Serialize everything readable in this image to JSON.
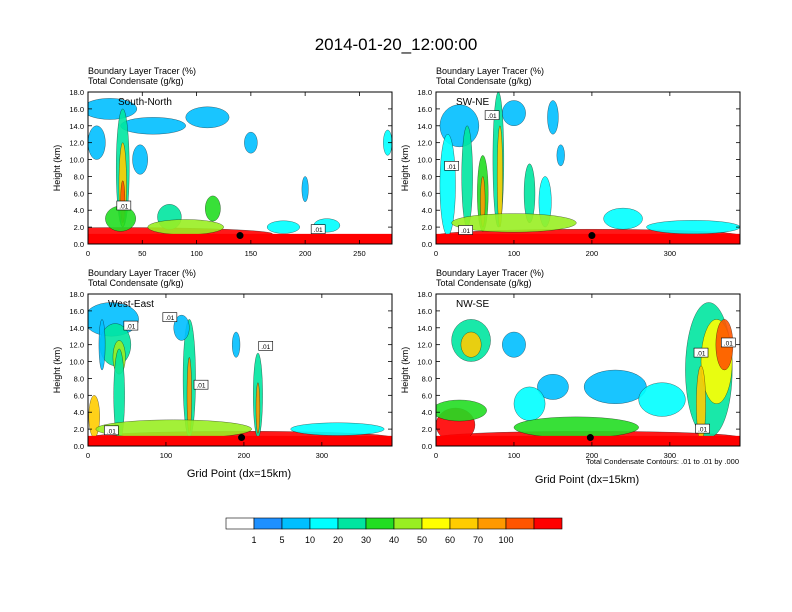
{
  "title": "2014-01-20_12:00:00",
  "panel_header": {
    "line1": "Boundary Layer Tracer   (%)",
    "line2": "Total Condensate   (g/kg)"
  },
  "ylabel": "Height (km)",
  "xlabel": "Grid Point (dx=15km)",
  "contour_note": "Total Condensate Contours: .01 to .01 by .000",
  "colorbar": {
    "levels": [
      "1",
      "5",
      "10",
      "20",
      "30",
      "40",
      "50",
      "60",
      "70",
      "100"
    ],
    "colors": [
      "#ffffff",
      "#1e90ff",
      "#00bfff",
      "#00ffff",
      "#00e5a0",
      "#22dd22",
      "#99ee22",
      "#ffff00",
      "#ffcc00",
      "#ff9900",
      "#ff5500",
      "#ff0000"
    ]
  },
  "chart_data": [
    {
      "type": "heatmap",
      "name": "South-North",
      "ylim": [
        0,
        18
      ],
      "xlim": [
        0,
        280
      ],
      "xticks": [
        "0",
        "50",
        "100",
        "150",
        "200",
        "250"
      ],
      "xtick_values": [
        0,
        50,
        100,
        150,
        200,
        250
      ],
      "yticks": [
        "0.0",
        "2.0",
        "4.0",
        "6.0",
        "8.0",
        "10.0",
        "12.0",
        "14.0",
        "16.0",
        "18.0"
      ],
      "contour_labels": [
        {
          "text": ".01",
          "x": 33,
          "y": 4.5
        },
        {
          "text": ".01",
          "x": 212,
          "y": 1.7
        }
      ],
      "marker": {
        "x": 140,
        "y": 1.0
      },
      "blobs": [
        {
          "x": 30,
          "y": 1.2,
          "w": 280,
          "h": 1.5,
          "level": 11
        },
        {
          "x": 20,
          "y": 16.0,
          "w": 50,
          "h": 2.5,
          "level": 2
        },
        {
          "x": 60,
          "y": 14.0,
          "w": 60,
          "h": 2.0,
          "level": 2
        },
        {
          "x": 110,
          "y": 15.0,
          "w": 40,
          "h": 2.5,
          "level": 2
        },
        {
          "x": 8,
          "y": 12.0,
          "w": 16,
          "h": 4.0,
          "level": 2
        },
        {
          "x": 32,
          "y": 9.0,
          "w": 12,
          "h": 14.0,
          "level": 4
        },
        {
          "x": 32,
          "y": 7.0,
          "w": 7,
          "h": 10.0,
          "level": 8
        },
        {
          "x": 32,
          "y": 5.0,
          "w": 4,
          "h": 5.0,
          "level": 10
        },
        {
          "x": 48,
          "y": 10.0,
          "w": 14,
          "h": 3.5,
          "level": 2
        },
        {
          "x": 30,
          "y": 3.0,
          "w": 28,
          "h": 3.0,
          "level": 5
        },
        {
          "x": 75,
          "y": 3.2,
          "w": 22,
          "h": 3.0,
          "level": 4
        },
        {
          "x": 115,
          "y": 4.2,
          "w": 14,
          "h": 3.0,
          "level": 5
        },
        {
          "x": 150,
          "y": 12.0,
          "w": 12,
          "h": 2.5,
          "level": 2
        },
        {
          "x": 200,
          "y": 6.5,
          "w": 6,
          "h": 3.0,
          "level": 2
        },
        {
          "x": 220,
          "y": 2.2,
          "w": 24,
          "h": 1.6,
          "level": 3
        },
        {
          "x": 180,
          "y": 2.0,
          "w": 30,
          "h": 1.5,
          "level": 3
        },
        {
          "x": 276,
          "y": 12.0,
          "w": 8,
          "h": 3.0,
          "level": 3
        },
        {
          "x": 90,
          "y": 2.0,
          "w": 70,
          "h": 1.8,
          "level": 6
        }
      ]
    },
    {
      "type": "heatmap",
      "name": "SW-NE",
      "ylim": [
        0,
        18
      ],
      "xlim": [
        0,
        390
      ],
      "xticks": [
        "0",
        "100",
        "200",
        "300"
      ],
      "xtick_values": [
        0,
        100,
        200,
        300
      ],
      "yticks": [
        "0.0",
        "2.0",
        "4.0",
        "6.0",
        "8.0",
        "10.0",
        "12.0",
        "14.0",
        "16.0",
        "18.0"
      ],
      "contour_labels": [
        {
          "text": ".01",
          "x": 72,
          "y": 15.2
        },
        {
          "text": ".01",
          "x": 20,
          "y": 9.2
        },
        {
          "text": ".01",
          "x": 38,
          "y": 1.6
        }
      ],
      "marker": {
        "x": 200,
        "y": 1.0
      },
      "blobs": [
        {
          "x": 195,
          "y": 1.0,
          "w": 390,
          "h": 1.5,
          "level": 11
        },
        {
          "x": 30,
          "y": 14.0,
          "w": 50,
          "h": 5.0,
          "level": 2
        },
        {
          "x": 15,
          "y": 7.0,
          "w": 20,
          "h": 12.0,
          "level": 3
        },
        {
          "x": 40,
          "y": 8.0,
          "w": 14,
          "h": 12.0,
          "level": 4
        },
        {
          "x": 80,
          "y": 10.0,
          "w": 14,
          "h": 16.0,
          "level": 4
        },
        {
          "x": 82,
          "y": 8.0,
          "w": 7,
          "h": 12.0,
          "level": 8
        },
        {
          "x": 60,
          "y": 6.0,
          "w": 14,
          "h": 9.0,
          "level": 5
        },
        {
          "x": 60,
          "y": 5.0,
          "w": 6,
          "h": 6.0,
          "level": 9
        },
        {
          "x": 100,
          "y": 15.5,
          "w": 30,
          "h": 3.0,
          "level": 2
        },
        {
          "x": 120,
          "y": 6.0,
          "w": 14,
          "h": 7.0,
          "level": 4
        },
        {
          "x": 140,
          "y": 5.0,
          "w": 16,
          "h": 6.0,
          "level": 3
        },
        {
          "x": 150,
          "y": 15.0,
          "w": 14,
          "h": 4.0,
          "level": 2
        },
        {
          "x": 160,
          "y": 10.5,
          "w": 10,
          "h": 2.5,
          "level": 2
        },
        {
          "x": 240,
          "y": 3.0,
          "w": 50,
          "h": 2.5,
          "level": 3
        },
        {
          "x": 330,
          "y": 2.0,
          "w": 120,
          "h": 1.6,
          "level": 3
        },
        {
          "x": 100,
          "y": 2.5,
          "w": 160,
          "h": 2.2,
          "level": 6
        }
      ]
    },
    {
      "type": "heatmap",
      "name": "West-East",
      "ylim": [
        0,
        18
      ],
      "xlim": [
        0,
        390
      ],
      "xticks": [
        "0",
        "100",
        "200",
        "300"
      ],
      "xtick_values": [
        0,
        100,
        200,
        300
      ],
      "yticks": [
        "0.0",
        "2.0",
        "4.0",
        "6.0",
        "8.0",
        "10.0",
        "12.0",
        "14.0",
        "16.0",
        "18.0"
      ],
      "contour_labels": [
        {
          "text": ".01",
          "x": 105,
          "y": 15.2
        },
        {
          "text": ".01",
          "x": 55,
          "y": 14.2
        },
        {
          "text": ".01",
          "x": 228,
          "y": 11.8
        },
        {
          "text": ".01",
          "x": 145,
          "y": 7.2
        },
        {
          "text": ".01",
          "x": 30,
          "y": 1.8
        }
      ],
      "marker": {
        "x": 197,
        "y": 1.0
      },
      "blobs": [
        {
          "x": 195,
          "y": 1.0,
          "w": 390,
          "h": 1.5,
          "level": 11
        },
        {
          "x": 30,
          "y": 15.0,
          "w": 70,
          "h": 4.0,
          "level": 2
        },
        {
          "x": 35,
          "y": 12.0,
          "w": 40,
          "h": 5.0,
          "level": 4
        },
        {
          "x": 40,
          "y": 10.5,
          "w": 16,
          "h": 4.0,
          "level": 6
        },
        {
          "x": 40,
          "y": 6.0,
          "w": 14,
          "h": 11.0,
          "level": 4
        },
        {
          "x": 8,
          "y": 3.5,
          "w": 14,
          "h": 5.0,
          "level": 8
        },
        {
          "x": 18,
          "y": 12.0,
          "w": 8,
          "h": 6.0,
          "level": 2
        },
        {
          "x": 130,
          "y": 8.0,
          "w": 16,
          "h": 14.0,
          "level": 4
        },
        {
          "x": 130,
          "y": 6.0,
          "w": 6,
          "h": 9.0,
          "level": 9
        },
        {
          "x": 120,
          "y": 14.0,
          "w": 20,
          "h": 3.0,
          "level": 2
        },
        {
          "x": 218,
          "y": 6.0,
          "w": 12,
          "h": 10.0,
          "level": 4
        },
        {
          "x": 218,
          "y": 4.5,
          "w": 5,
          "h": 6.0,
          "level": 9
        },
        {
          "x": 190,
          "y": 12.0,
          "w": 10,
          "h": 3.0,
          "level": 2
        },
        {
          "x": 110,
          "y": 2.0,
          "w": 200,
          "h": 2.2,
          "level": 6
        },
        {
          "x": 320,
          "y": 2.0,
          "w": 120,
          "h": 1.5,
          "level": 3
        }
      ]
    },
    {
      "type": "heatmap",
      "name": "NW-SE",
      "ylim": [
        0,
        18
      ],
      "xlim": [
        0,
        390
      ],
      "xticks": [
        "0",
        "100",
        "200",
        "300"
      ],
      "xtick_values": [
        0,
        100,
        200,
        300
      ],
      "yticks": [
        "0.0",
        "2.0",
        "4.0",
        "6.0",
        "8.0",
        "10.0",
        "12.0",
        "14.0",
        "16.0",
        "18.0"
      ],
      "contour_labels": [
        {
          "text": ".01",
          "x": 340,
          "y": 11.0
        },
        {
          "text": ".01",
          "x": 375,
          "y": 12.2
        },
        {
          "text": ".01",
          "x": 342,
          "y": 2.0
        }
      ],
      "marker": {
        "x": 198,
        "y": 1.0
      },
      "blobs": [
        {
          "x": 195,
          "y": 1.0,
          "w": 390,
          "h": 1.5,
          "level": 11
        },
        {
          "x": 25,
          "y": 2.5,
          "w": 50,
          "h": 4.0,
          "level": 11
        },
        {
          "x": 30,
          "y": 4.2,
          "w": 70,
          "h": 2.5,
          "level": 5
        },
        {
          "x": 45,
          "y": 12.5,
          "w": 50,
          "h": 5.0,
          "level": 4
        },
        {
          "x": 45,
          "y": 12.0,
          "w": 26,
          "h": 3.0,
          "level": 8
        },
        {
          "x": 100,
          "y": 12.0,
          "w": 30,
          "h": 3.0,
          "level": 2
        },
        {
          "x": 150,
          "y": 7.0,
          "w": 40,
          "h": 3.0,
          "level": 2
        },
        {
          "x": 120,
          "y": 5.0,
          "w": 40,
          "h": 4.0,
          "level": 3
        },
        {
          "x": 230,
          "y": 7.0,
          "w": 80,
          "h": 4.0,
          "level": 2
        },
        {
          "x": 290,
          "y": 5.5,
          "w": 60,
          "h": 4.0,
          "level": 3
        },
        {
          "x": 350,
          "y": 9.0,
          "w": 60,
          "h": 16.0,
          "level": 4
        },
        {
          "x": 360,
          "y": 10.0,
          "w": 40,
          "h": 10.0,
          "level": 7
        },
        {
          "x": 370,
          "y": 12.0,
          "w": 22,
          "h": 6.0,
          "level": 10
        },
        {
          "x": 340,
          "y": 5.0,
          "w": 12,
          "h": 9.0,
          "level": 8
        },
        {
          "x": 180,
          "y": 2.2,
          "w": 160,
          "h": 2.5,
          "level": 5
        }
      ]
    }
  ]
}
